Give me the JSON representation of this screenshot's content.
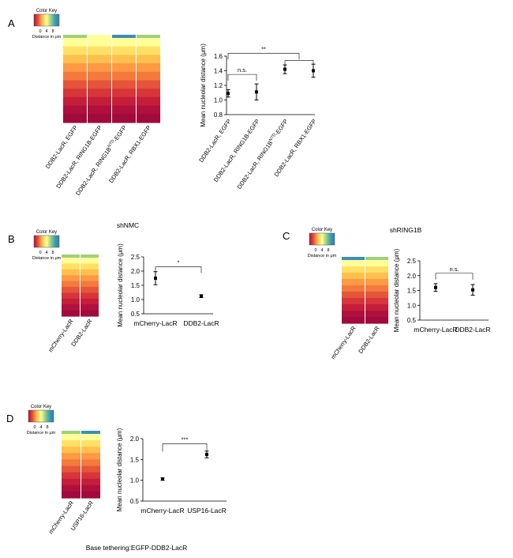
{
  "figure": {
    "color_key": {
      "title": "Color Key",
      "ticks": [
        "0",
        "4",
        "8"
      ],
      "caption": "Distance in μm"
    },
    "colors": {
      "heat": [
        "#ffff99",
        "#ffe066",
        "#ffc04d",
        "#ff9944",
        "#f37a3c",
        "#e5553a",
        "#d6363a",
        "#c41e3a",
        "#b0103e",
        "#a00a3c"
      ],
      "key_gradient": [
        "#b0103e",
        "#e5553a",
        "#ffc04d",
        "#ffff99",
        "#9ed07e",
        "#3aa0b0",
        "#2e7cb8"
      ],
      "top_blue": "#3a8fb7",
      "top_green": "#9ed07e"
    }
  },
  "panels": [
    {
      "letter": "A",
      "title": "",
      "heatmap_columns": [
        "DDB2-LacR, EGFP",
        "DDB2-LacR, RING1B-EGFP",
        "DDB2-LacR, RING1B{NTD}-EGFP",
        "DDB2-LacR, RBX1-EGFP"
      ],
      "footnote": "",
      "chart_data": {
        "type": "scatter",
        "categories": [
          "DDB2-LacR, EGFP",
          "DDB2-LacR, RING1B-EGFP",
          "DDB2-LacR, RING1B{NTD}-EGFP",
          "DDB2-LacR, RBX1-EGFP"
        ],
        "values": [
          1.09,
          1.11,
          1.42,
          1.4
        ],
        "errors": [
          0.05,
          0.11,
          0.06,
          0.09
        ],
        "ylabel": "Mean nucleolar distance (μm)",
        "ylim": [
          0.8,
          1.6
        ],
        "yticks": [
          "0.8",
          "1.0",
          "1.2",
          "1.4",
          "1.6"
        ],
        "annotations": [
          {
            "label": "n.s.",
            "from": 0,
            "to": 1,
            "level": 1.35
          },
          {
            "label": "",
            "from": 2,
            "to": 3,
            "level": 1.54
          },
          {
            "label": "**",
            "from": 0,
            "to": 2.5,
            "level": 1.64
          }
        ]
      }
    },
    {
      "letter": "B",
      "title": "shNMC",
      "heatmap_columns": [
        "mCherry-LacR",
        "DDB2-LacR"
      ],
      "footnote": "",
      "chart_data": {
        "type": "scatter",
        "categories": [
          "mCherry-LacR",
          "DDB2-LacR"
        ],
        "values": [
          1.75,
          1.12
        ],
        "errors": [
          0.23,
          0.05
        ],
        "ylabel": "Mean nucleolar distance (μm)",
        "ylim": [
          0.5,
          2.5
        ],
        "yticks": [
          "0.5",
          "1.0",
          "1.5",
          "2.0",
          "2.5"
        ],
        "annotations": [
          {
            "label": "*",
            "from": 0,
            "to": 1,
            "level": 2.15
          }
        ]
      }
    },
    {
      "letter": "C",
      "title": "shRING1B",
      "heatmap_columns": [
        "mCherry-LacR",
        "DDB2-LacR"
      ],
      "footnote": "",
      "chart_data": {
        "type": "scatter",
        "categories": [
          "mCherry-LacR",
          "DDB2-LacR"
        ],
        "values": [
          1.6,
          1.52
        ],
        "errors": [
          0.13,
          0.18
        ],
        "ylabel": "Mean nucleolar distance (μm)",
        "ylim": [
          0.5,
          2.5
        ],
        "yticks": [
          "0.5",
          "1.0",
          "1.5",
          "2.0",
          "2.5"
        ],
        "annotations": [
          {
            "label": "n.s.",
            "from": 0,
            "to": 1,
            "level": 2.08
          }
        ]
      }
    },
    {
      "letter": "D",
      "title": "",
      "heatmap_columns": [
        "mCherry-LacR",
        "USP16-LacR"
      ],
      "footnote": "Base tethering:EGFP-DDB2-LacR",
      "chart_data": {
        "type": "scatter",
        "categories": [
          "mCherry-LacR",
          "USP16-LacR"
        ],
        "values": [
          1.03,
          1.62
        ],
        "errors": [
          0.03,
          0.08
        ],
        "ylabel": "Mean nucleolar distance (μm)",
        "ylim": [
          0.5,
          2.0
        ],
        "yticks": [
          "0.5",
          "1.0",
          "1.5",
          "2.0"
        ],
        "annotations": [
          {
            "label": "***",
            "from": 0,
            "to": 1,
            "level": 1.88
          }
        ]
      }
    }
  ]
}
